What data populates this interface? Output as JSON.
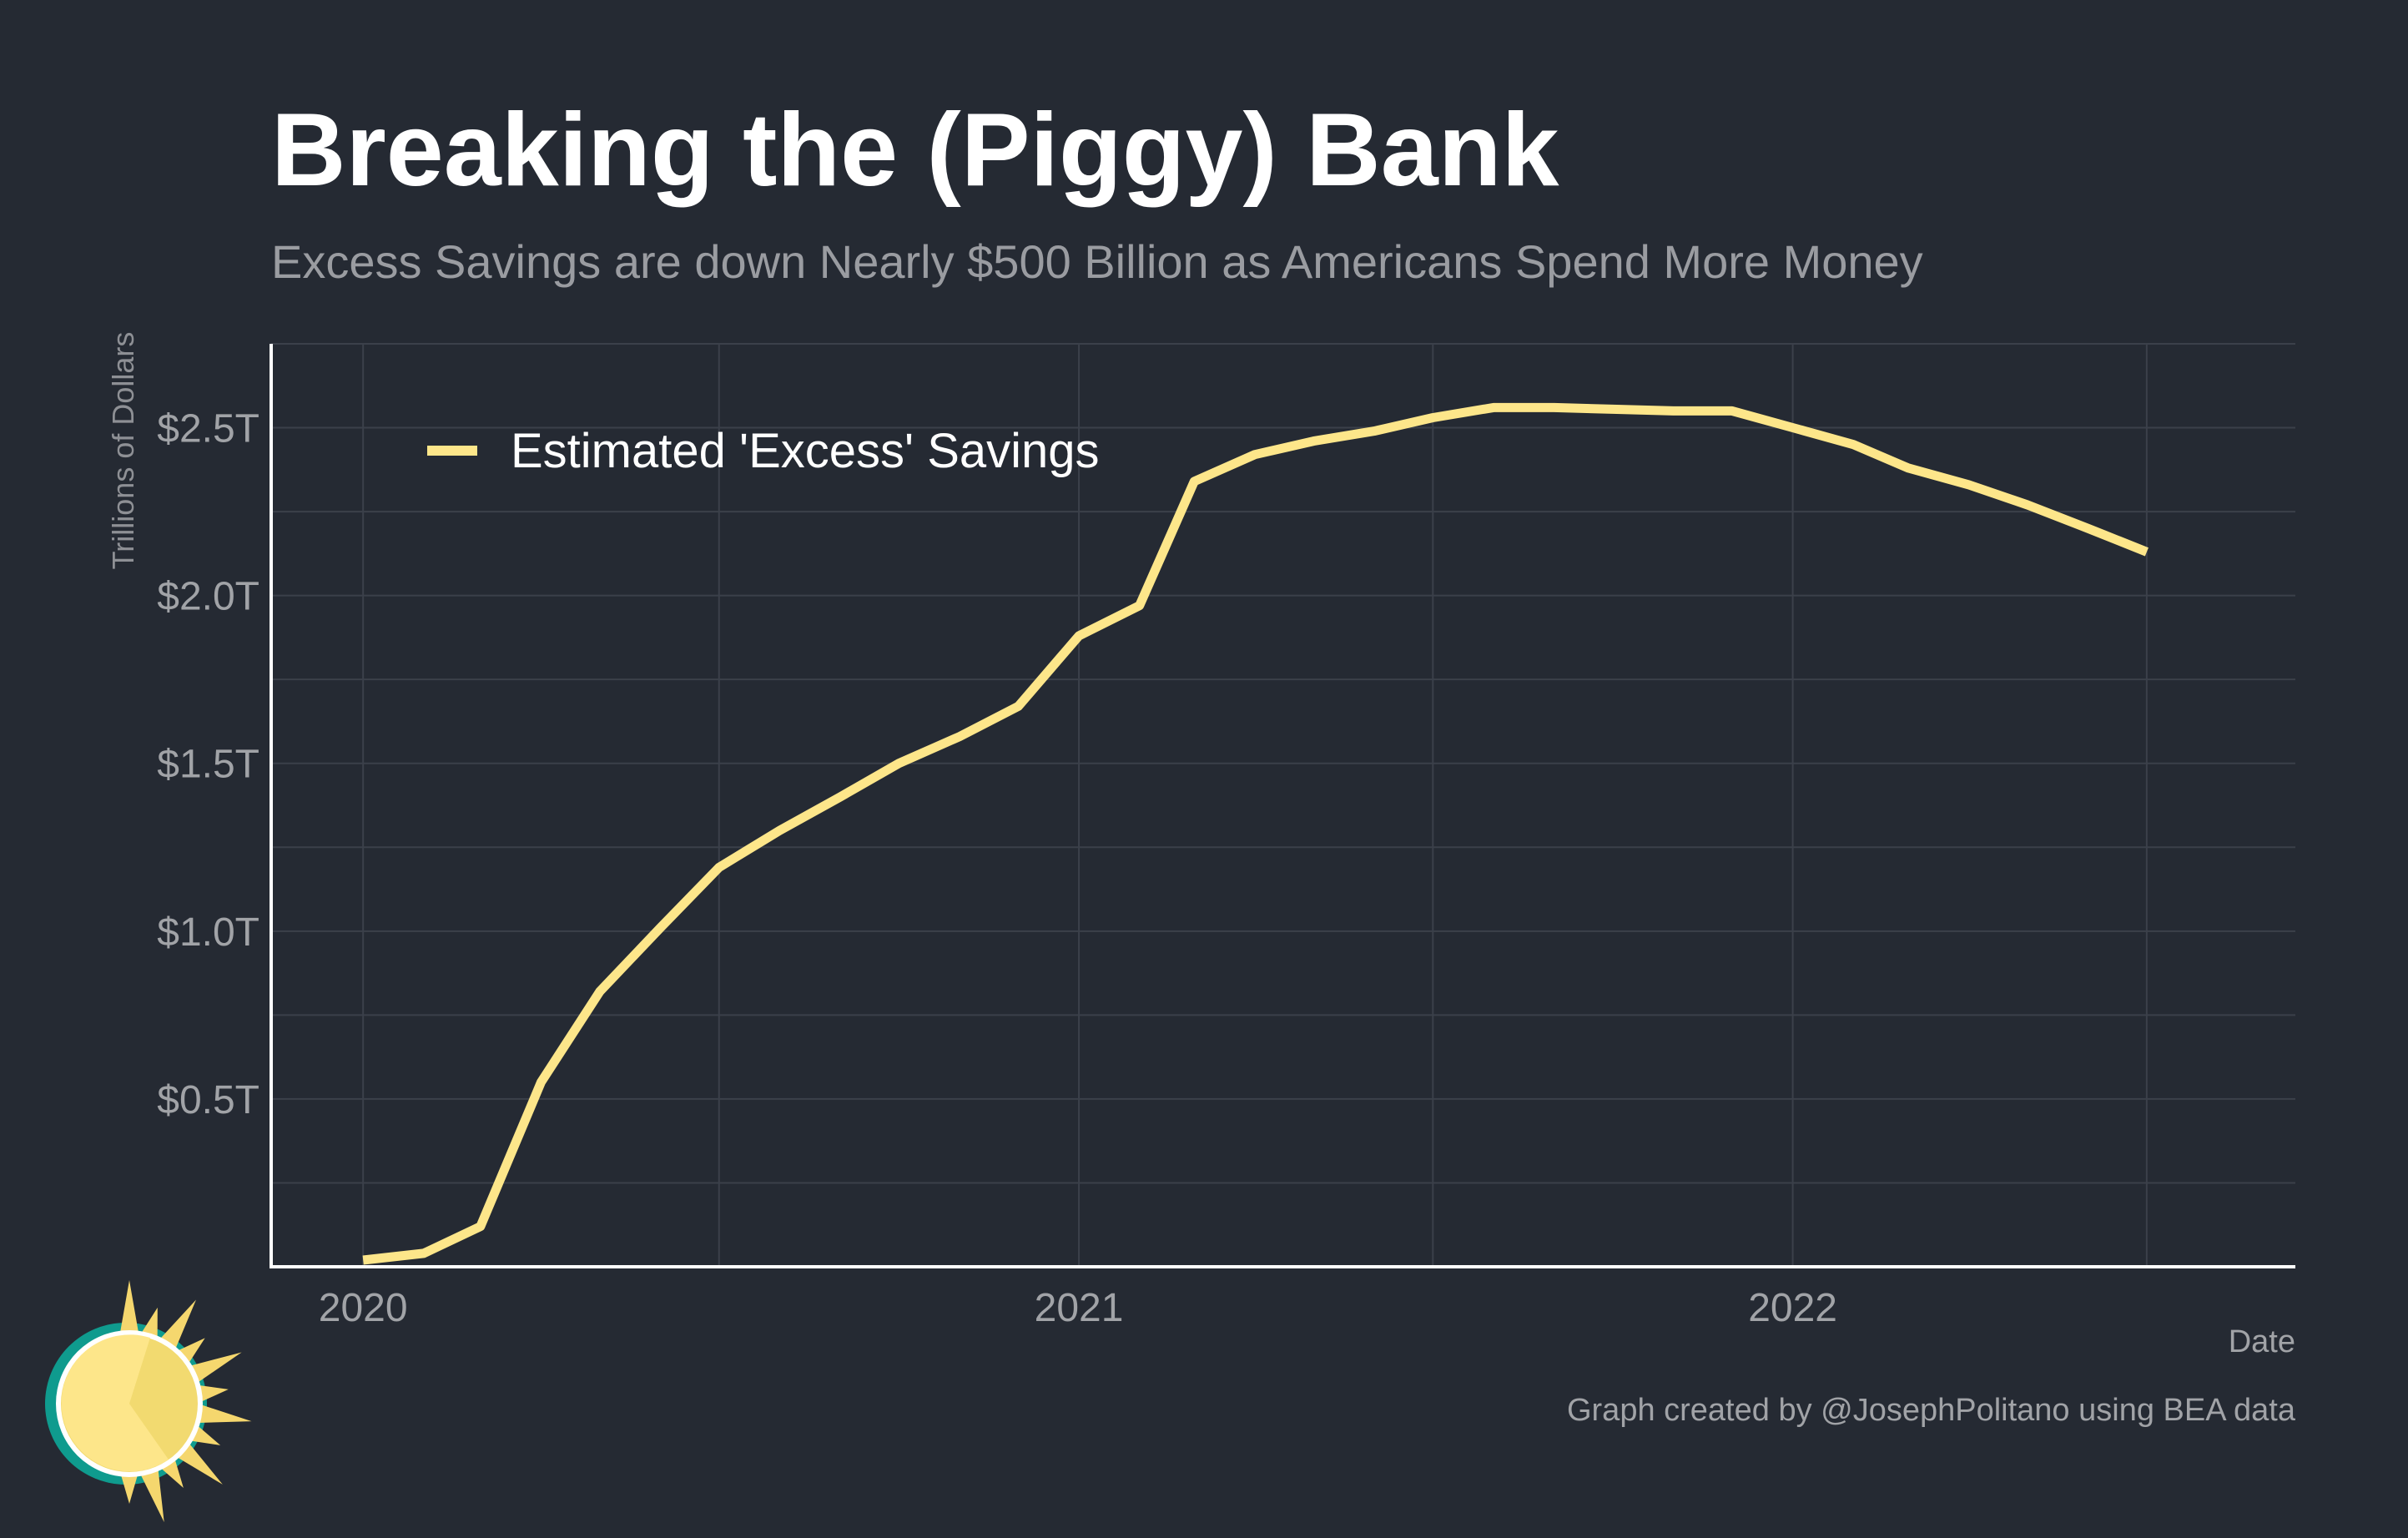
{
  "title": "Breaking the (Piggy) Bank",
  "subtitle": "Excess Savings are down Nearly $500 Billion as Americans Spend More Money",
  "caption": "Graph created by @JosephPolitano using BEA data",
  "colors": {
    "background": "#252a33",
    "line": "#fde68a",
    "grid": "#3b404a",
    "axis": "#ffffff",
    "logo_sun": "#fce38a",
    "logo_ring": "#0f9b8e"
  },
  "logo": {
    "name": "sun-logo-icon"
  },
  "chart_data": {
    "type": "line",
    "xlabel": "Date",
    "ylabel": "Trillions of Dollars",
    "xlim": [
      "2019-11-15",
      "2022-09-15"
    ],
    "ylim": [
      0,
      2.75
    ],
    "grid": true,
    "legend_position": "top-left",
    "y_ticks": [
      0.5,
      1.0,
      1.5,
      2.0,
      2.5
    ],
    "y_tick_labels": [
      "$0.5T",
      "$1.0T",
      "$1.5T",
      "$2.0T",
      "$2.5T"
    ],
    "x_ticks": [
      "2020-01-01",
      "2021-01-01",
      "2022-01-01"
    ],
    "x_tick_labels": [
      "2020",
      "2021",
      "2022"
    ],
    "series": [
      {
        "name": "Estimated 'Excess' Savings",
        "color": "#fde68a",
        "x": [
          "2020-01-01",
          "2020-02-01",
          "2020-03-01",
          "2020-04-01",
          "2020-05-01",
          "2020-06-01",
          "2020-07-01",
          "2020-08-01",
          "2020-09-01",
          "2020-10-01",
          "2020-11-01",
          "2020-12-01",
          "2021-01-01",
          "2021-02-01",
          "2021-03-01",
          "2021-04-01",
          "2021-05-01",
          "2021-06-01",
          "2021-07-01",
          "2021-08-01",
          "2021-09-01",
          "2021-10-01",
          "2021-11-01",
          "2021-12-01",
          "2022-01-01",
          "2022-02-01",
          "2022-03-01",
          "2022-04-01",
          "2022-05-01",
          "2022-06-01",
          "2022-07-01"
        ],
        "values": [
          0.02,
          0.04,
          0.12,
          0.55,
          0.82,
          1.01,
          1.19,
          1.3,
          1.4,
          1.5,
          1.58,
          1.67,
          1.88,
          1.97,
          2.34,
          2.42,
          2.46,
          2.49,
          2.53,
          2.56,
          2.56,
          2.555,
          2.55,
          2.55,
          2.5,
          2.45,
          2.38,
          2.33,
          2.27,
          2.2,
          2.13
        ]
      }
    ]
  }
}
